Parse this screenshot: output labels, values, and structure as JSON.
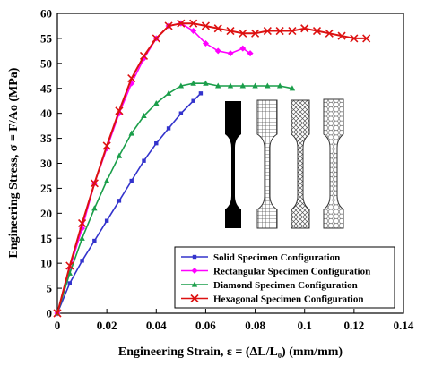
{
  "chart_data": {
    "type": "line",
    "xlabel": "Engineering Strain, ε = (ΔL/L₀) (mm/mm)",
    "ylabel": "Engineering Stress, σ = F/Ao (MPa)",
    "xlim": [
      0,
      0.14
    ],
    "ylim": [
      0,
      60
    ],
    "xticks": [
      "0",
      "0.02",
      "0.04",
      "0.06",
      "0.08",
      "0.1",
      "0.12",
      "0.14"
    ],
    "yticks": [
      "0",
      "5",
      "10",
      "15",
      "20",
      "25",
      "30",
      "35",
      "40",
      "45",
      "50",
      "55",
      "60"
    ],
    "grid": false,
    "legend_position": "bottom-right",
    "series": [
      {
        "name": "Solid Specimen Configuration",
        "color": "#3333cc",
        "marker": "square",
        "x": [
          0,
          0.005,
          0.01,
          0.015,
          0.02,
          0.025,
          0.03,
          0.035,
          0.04,
          0.045,
          0.05,
          0.055,
          0.058
        ],
        "y": [
          0,
          6,
          10.5,
          14.5,
          18.5,
          22.5,
          26.5,
          30.5,
          34,
          37,
          40,
          42.5,
          44
        ]
      },
      {
        "name": "Rectangular Specimen Configuration",
        "color": "#ff00ff",
        "marker": "diamond",
        "x": [
          0,
          0.005,
          0.01,
          0.015,
          0.02,
          0.025,
          0.03,
          0.035,
          0.04,
          0.045,
          0.05,
          0.055,
          0.06,
          0.065,
          0.07,
          0.075,
          0.078
        ],
        "y": [
          0,
          9,
          17,
          26,
          33,
          40,
          46,
          51,
          55,
          57.5,
          58,
          56.5,
          54,
          52.5,
          52,
          53,
          52
        ]
      },
      {
        "name": "Diamond Specimen Configuration",
        "color": "#1a9e4a",
        "marker": "triangle",
        "x": [
          0,
          0.005,
          0.01,
          0.015,
          0.02,
          0.025,
          0.03,
          0.035,
          0.04,
          0.045,
          0.05,
          0.055,
          0.06,
          0.065,
          0.07,
          0.075,
          0.08,
          0.085,
          0.09,
          0.095
        ],
        "y": [
          0,
          8,
          15,
          21,
          26.5,
          31.5,
          36,
          39.5,
          42,
          44,
          45.5,
          46,
          46,
          45.5,
          45.5,
          45.5,
          45.5,
          45.5,
          45.5,
          45
        ]
      },
      {
        "name": "Hexagonal Specimen Configuration",
        "color": "#dd1111",
        "marker": "x",
        "x": [
          0,
          0.005,
          0.01,
          0.015,
          0.02,
          0.025,
          0.03,
          0.035,
          0.04,
          0.045,
          0.05,
          0.055,
          0.06,
          0.065,
          0.07,
          0.075,
          0.08,
          0.085,
          0.09,
          0.095,
          0.1,
          0.105,
          0.11,
          0.115,
          0.12,
          0.125
        ],
        "y": [
          0,
          9.5,
          18,
          26,
          33.5,
          40.5,
          47,
          51.5,
          55,
          57.5,
          58,
          58,
          57.5,
          57,
          56.5,
          56,
          56,
          56.5,
          56.5,
          56.5,
          57,
          56.5,
          56,
          55.5,
          55,
          55
        ]
      }
    ]
  },
  "inset": {
    "specimens": [
      {
        "name": "solid-specimen",
        "fill": "#000000"
      },
      {
        "name": "rectangular-specimen",
        "fill": "#bbbbbb"
      },
      {
        "name": "diamond-specimen",
        "fill": "#cccccc"
      },
      {
        "name": "hexagonal-specimen",
        "fill": "#dddddd"
      }
    ]
  }
}
